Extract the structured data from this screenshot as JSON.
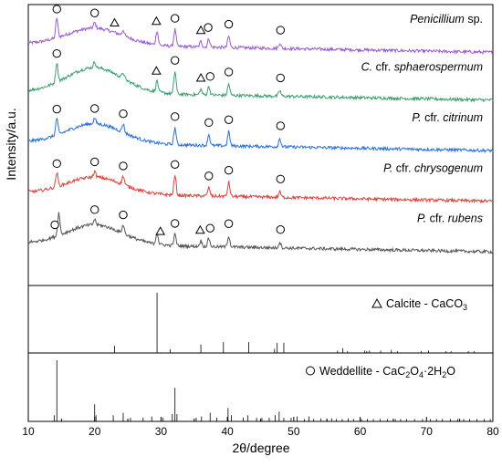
{
  "chart_data": {
    "type": "line",
    "xlabel": "2θ/degree",
    "ylabel": "Intensity/a.u.",
    "xlim": [
      10,
      80
    ],
    "xticks": [
      10,
      20,
      30,
      40,
      50,
      60,
      70,
      80
    ],
    "markers_legend": {
      "circle": "Weddellite",
      "triangle": "Calcite"
    },
    "series": [
      {
        "name_parts": [
          {
            "t": "Penicillium",
            "i": true
          },
          {
            "t": " sp.",
            "i": false
          }
        ],
        "color": "#9b59d0",
        "baseline": 0.86,
        "hump_height": 0.06,
        "peaks": [
          [
            14.3,
            0.07
          ],
          [
            20.0,
            0.02
          ],
          [
            24.3,
            0.02
          ],
          [
            29.4,
            0.05
          ],
          [
            32.1,
            0.06
          ],
          [
            36.0,
            0.02
          ],
          [
            37.2,
            0.03
          ],
          [
            40.2,
            0.04
          ],
          [
            47.9,
            0.02
          ]
        ],
        "markers": [
          [
            "circle",
            14.3
          ],
          [
            "circle",
            20.0
          ],
          [
            "triangle",
            23.0
          ],
          [
            "triangle",
            29.3
          ],
          [
            "circle",
            32.1
          ],
          [
            "triangle",
            36.0
          ],
          [
            "circle",
            37.1
          ],
          [
            "circle",
            40.2
          ],
          [
            "circle",
            48.0
          ]
        ]
      },
      {
        "name_parts": [
          {
            "t": "C.",
            "i": true
          },
          {
            "t": " cfr. ",
            "i": false
          },
          {
            "t": "sphaerospermum",
            "i": true
          }
        ],
        "color": "#3a9e6e",
        "baseline": 0.69,
        "hump_height": 0.09,
        "peaks": [
          [
            14.3,
            0.07
          ],
          [
            20.0,
            0.02
          ],
          [
            24.3,
            0.02
          ],
          [
            29.4,
            0.04
          ],
          [
            32.1,
            0.08
          ],
          [
            36.0,
            0.02
          ],
          [
            37.2,
            0.03
          ],
          [
            40.2,
            0.04
          ],
          [
            47.9,
            0.02
          ]
        ],
        "markers": [
          [
            "circle",
            14.3
          ],
          [
            "triangle",
            29.3
          ],
          [
            "circle",
            32.1
          ],
          [
            "triangle",
            36.0
          ],
          [
            "circle",
            37.4
          ],
          [
            "circle",
            40.2
          ],
          [
            "circle",
            48.0
          ]
        ]
      },
      {
        "name_parts": [
          {
            "t": "P.",
            "i": true
          },
          {
            "t": " cfr. ",
            "i": false
          },
          {
            "t": "citrinum",
            "i": true
          }
        ],
        "color": "#2a6fd6",
        "baseline": 0.51,
        "hump_height": 0.07,
        "peaks": [
          [
            14.3,
            0.06
          ],
          [
            20.0,
            0.02
          ],
          [
            24.3,
            0.03
          ],
          [
            32.1,
            0.06
          ],
          [
            37.2,
            0.04
          ],
          [
            40.2,
            0.05
          ],
          [
            47.9,
            0.03
          ]
        ],
        "markers": [
          [
            "circle",
            14.3
          ],
          [
            "circle",
            20.0
          ],
          [
            "circle",
            24.3
          ],
          [
            "circle",
            32.1
          ],
          [
            "circle",
            37.2
          ],
          [
            "circle",
            40.2
          ],
          [
            "circle",
            48.0
          ]
        ]
      },
      {
        "name_parts": [
          {
            "t": "P.",
            "i": true
          },
          {
            "t": " cfr. ",
            "i": false
          },
          {
            "t": "chrysogenum",
            "i": true
          }
        ],
        "color": "#e0403a",
        "baseline": 0.33,
        "hump_height": 0.06,
        "peaks": [
          [
            14.3,
            0.05
          ],
          [
            20.0,
            0.02
          ],
          [
            24.3,
            0.03
          ],
          [
            32.1,
            0.07
          ],
          [
            37.2,
            0.03
          ],
          [
            40.2,
            0.05
          ],
          [
            47.9,
            0.02
          ]
        ],
        "markers": [
          [
            "circle",
            14.3
          ],
          [
            "circle",
            20.0
          ],
          [
            "circle",
            24.3
          ],
          [
            "circle",
            32.1
          ],
          [
            "circle",
            37.2
          ],
          [
            "circle",
            40.2
          ],
          [
            "circle",
            48.0
          ]
        ]
      },
      {
        "name_parts": [
          {
            "t": "P.",
            "i": true
          },
          {
            "t": " cfr. ",
            "i": false
          },
          {
            "t": "rubens",
            "i": true
          }
        ],
        "color": "#555555",
        "baseline": 0.15,
        "hump_height": 0.07,
        "peaks": [
          [
            14.6,
            0.08
          ],
          [
            20.0,
            0.02
          ],
          [
            24.3,
            0.03
          ],
          [
            29.4,
            0.04
          ],
          [
            32.1,
            0.04
          ],
          [
            36.0,
            0.02
          ],
          [
            37.2,
            0.03
          ],
          [
            40.2,
            0.04
          ],
          [
            47.9,
            0.02
          ]
        ],
        "markers": [
          [
            "circle",
            14.0
          ],
          [
            "circle",
            20.0
          ],
          [
            "circle",
            24.3
          ],
          [
            "triangle",
            29.9
          ],
          [
            "circle",
            32.1
          ],
          [
            "triangle",
            35.9
          ],
          [
            "circle",
            37.4
          ],
          [
            "circle",
            40.2
          ],
          [
            "circle",
            48.0
          ]
        ]
      }
    ],
    "references": [
      {
        "id": "calcite",
        "symbol": "triangle",
        "label_text": "Calcite - CaCO",
        "label_sub": "3",
        "lines": [
          [
            23.0,
            0.12
          ],
          [
            29.4,
            1.0
          ],
          [
            31.4,
            0.06
          ],
          [
            36.0,
            0.14
          ],
          [
            39.4,
            0.18
          ],
          [
            43.2,
            0.18
          ],
          [
            47.1,
            0.07
          ],
          [
            47.5,
            0.17
          ],
          [
            48.5,
            0.17
          ],
          [
            56.6,
            0.04
          ],
          [
            57.4,
            0.08
          ],
          [
            58.1,
            0.03
          ],
          [
            60.7,
            0.04
          ],
          [
            61.0,
            0.03
          ],
          [
            61.4,
            0.04
          ],
          [
            63.1,
            0.04
          ],
          [
            64.7,
            0.05
          ],
          [
            65.6,
            0.03
          ],
          [
            69.2,
            0.03
          ],
          [
            70.3,
            0.04
          ],
          [
            72.9,
            0.03
          ],
          [
            73.7,
            0.03
          ],
          [
            76.3,
            0.03
          ],
          [
            77.2,
            0.03
          ]
        ]
      },
      {
        "id": "weddellite",
        "symbol": "circle",
        "label_parts": [
          {
            "t": "Weddellite - CaC"
          },
          {
            "t": "2",
            "sub": true
          },
          {
            "t": "O"
          },
          {
            "t": "4",
            "sub": true
          },
          {
            "t": "·2H"
          },
          {
            "t": "2",
            "sub": true
          },
          {
            "t": "O"
          }
        ],
        "lines": [
          [
            13.9,
            0.1
          ],
          [
            14.3,
            1.0
          ],
          [
            20.0,
            0.28
          ],
          [
            20.2,
            0.1
          ],
          [
            22.8,
            0.1
          ],
          [
            24.3,
            0.14
          ],
          [
            25.4,
            0.06
          ],
          [
            27.3,
            0.06
          ],
          [
            28.6,
            0.08
          ],
          [
            30.3,
            0.06
          ],
          [
            31.7,
            0.12
          ],
          [
            32.1,
            0.55
          ],
          [
            32.4,
            0.12
          ],
          [
            35.3,
            0.06
          ],
          [
            36.1,
            0.08
          ],
          [
            37.4,
            0.14
          ],
          [
            38.4,
            0.06
          ],
          [
            40.1,
            0.22
          ],
          [
            40.6,
            0.1
          ],
          [
            42.4,
            0.06
          ],
          [
            43.1,
            0.1
          ],
          [
            44.4,
            0.06
          ],
          [
            45.2,
            0.06
          ],
          [
            46.3,
            0.06
          ],
          [
            47.2,
            0.1
          ],
          [
            47.8,
            0.16
          ],
          [
            48.5,
            0.06
          ],
          [
            49.6,
            0.06
          ],
          [
            50.5,
            0.08
          ],
          [
            51.6,
            0.04
          ],
          [
            52.3,
            0.08
          ],
          [
            53.0,
            0.04
          ],
          [
            54.1,
            0.05
          ],
          [
            55.0,
            0.04
          ],
          [
            55.7,
            0.05
          ],
          [
            56.4,
            0.04
          ],
          [
            57.3,
            0.04
          ],
          [
            58.2,
            0.05
          ],
          [
            59.0,
            0.04
          ],
          [
            60.2,
            0.04
          ],
          [
            61.1,
            0.04
          ],
          [
            62.0,
            0.04
          ],
          [
            63.0,
            0.04
          ],
          [
            64.1,
            0.04
          ],
          [
            65.3,
            0.04
          ],
          [
            66.1,
            0.04
          ],
          [
            67.0,
            0.04
          ],
          [
            68.2,
            0.04
          ],
          [
            69.4,
            0.04
          ],
          [
            70.6,
            0.04
          ],
          [
            71.5,
            0.04
          ],
          [
            72.4,
            0.04
          ],
          [
            73.6,
            0.04
          ],
          [
            74.7,
            0.04
          ],
          [
            75.6,
            0.04
          ],
          [
            76.5,
            0.04
          ],
          [
            77.6,
            0.04
          ],
          [
            78.7,
            0.04
          ],
          [
            79.6,
            0.04
          ]
        ]
      }
    ]
  }
}
